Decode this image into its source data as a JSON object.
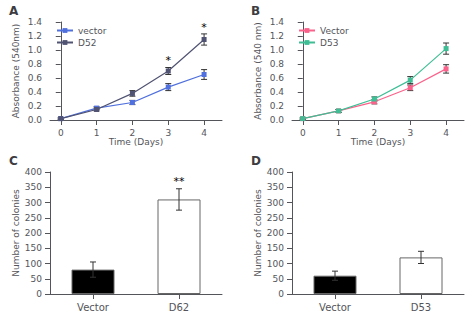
{
  "chart_data": [
    {
      "type": "line",
      "title": "A",
      "xlabel": "Time (Days)",
      "ylabel": "Absorbance (540nm)",
      "x": [
        0,
        1,
        2,
        3,
        4
      ],
      "series": [
        {
          "name": "vector",
          "values": [
            0.02,
            0.17,
            0.25,
            0.47,
            0.65
          ],
          "errors": [
            0.01,
            0.02,
            0.03,
            0.05,
            0.07
          ],
          "marker": "square"
        },
        {
          "name": "D52",
          "values": [
            0.02,
            0.15,
            0.38,
            0.7,
            1.15
          ],
          "errors": [
            0.01,
            0.02,
            0.04,
            0.05,
            0.08
          ],
          "marker": "square"
        }
      ],
      "xlim": [
        -0.3,
        4.5
      ],
      "xticks": [
        0,
        1,
        2,
        3,
        4
      ],
      "ylim": [
        0,
        1.4
      ],
      "yticks": [
        {
          "value": 0,
          "label": "0.0"
        },
        0.2,
        0.4,
        0.6,
        0.8,
        {
          "value": 1,
          "label": "1.0"
        },
        1.2,
        1.4
      ],
      "legend": "upper left",
      "grid": false,
      "annotations": [
        {
          "text": "*",
          "x": 3,
          "y": 0.77
        },
        {
          "text": "*",
          "x": 4,
          "y": 1.25
        }
      ]
    },
    {
      "type": "line",
      "title": "B",
      "xlabel": "Time (Days)",
      "ylabel": "Absorbance (540 nm)",
      "x": [
        0,
        1,
        2,
        3,
        4
      ],
      "series": [
        {
          "name": "Vector",
          "values": [
            0.02,
            0.13,
            0.26,
            0.46,
            0.73
          ],
          "errors": [
            0.01,
            0.02,
            0.03,
            0.04,
            0.06
          ],
          "marker": "square"
        },
        {
          "name": "D53",
          "values": [
            0.02,
            0.13,
            0.3,
            0.57,
            1.02
          ],
          "errors": [
            0.01,
            0.02,
            0.03,
            0.05,
            0.08
          ],
          "marker": "square"
        }
      ],
      "xlim": [
        -0.3,
        4.5
      ],
      "xticks": [
        0,
        1,
        2,
        3,
        4
      ],
      "ylim": [
        0,
        1.4
      ],
      "yticks": [
        {
          "value": 0,
          "label": "0.0"
        },
        0.2,
        0.4,
        0.6,
        0.8,
        {
          "value": 1,
          "label": "1.0"
        },
        1.2,
        1.4
      ],
      "legend": "upper left",
      "grid": false
    },
    {
      "type": "bar",
      "title": "C",
      "ylabel": "Number of colonies",
      "categories": [
        "Vector",
        "D62"
      ],
      "values": [
        80,
        310
      ],
      "errors": [
        25,
        35
      ],
      "colors": [
        "#000000",
        "#ffffff"
      ],
      "ylim": [
        0,
        400
      ],
      "yticks": [
        0,
        50,
        100,
        150,
        200,
        250,
        300,
        350,
        400
      ],
      "grid": false,
      "annotations": [
        {
          "text": "**",
          "x": "D62"
        }
      ]
    },
    {
      "type": "bar",
      "title": "D",
      "ylabel": "Number of colonies",
      "categories": [
        "Vector",
        "D53"
      ],
      "values": [
        60,
        120
      ],
      "errors": [
        15,
        20
      ],
      "colors": [
        "#000000",
        "#ffffff"
      ],
      "ylim": [
        0,
        400
      ],
      "yticks": [
        0,
        50,
        100,
        150,
        200,
        250,
        300,
        350,
        400
      ],
      "grid": false
    }
  ]
}
